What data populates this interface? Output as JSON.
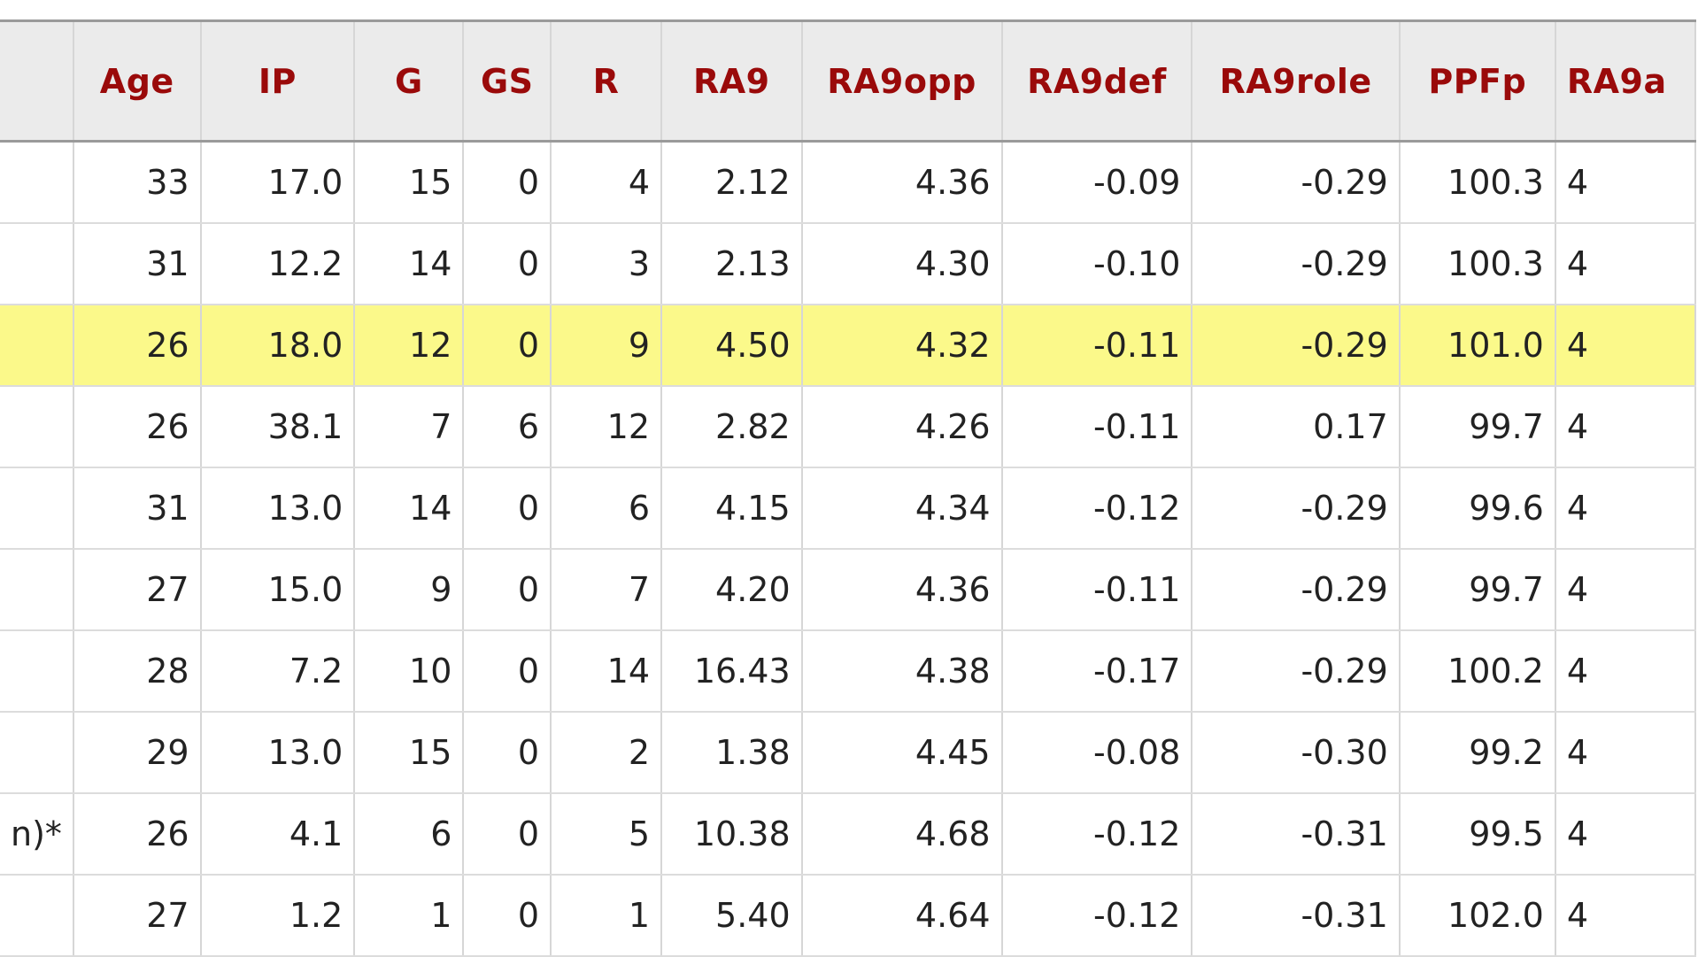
{
  "table": {
    "columns": [
      "",
      "Age",
      "IP",
      "G",
      "GS",
      "R",
      "RA9",
      "RA9opp",
      "RA9def",
      "RA9role",
      "PPFp",
      "RA9a"
    ],
    "highlight_row": 2,
    "highlight_color": "#fbf98a",
    "header_color": "#9a0a0a",
    "rows": [
      [
        "",
        "33",
        "17.0",
        "15",
        "0",
        "4",
        "2.12",
        "4.36",
        "-0.09",
        "-0.29",
        "100.3",
        "4"
      ],
      [
        "",
        "31",
        "12.2",
        "14",
        "0",
        "3",
        "2.13",
        "4.30",
        "-0.10",
        "-0.29",
        "100.3",
        "4"
      ],
      [
        "",
        "26",
        "18.0",
        "12",
        "0",
        "9",
        "4.50",
        "4.32",
        "-0.11",
        "-0.29",
        "101.0",
        "4"
      ],
      [
        "",
        "26",
        "38.1",
        "7",
        "6",
        "12",
        "2.82",
        "4.26",
        "-0.11",
        "0.17",
        "99.7",
        "4"
      ],
      [
        "",
        "31",
        "13.0",
        "14",
        "0",
        "6",
        "4.15",
        "4.34",
        "-0.12",
        "-0.29",
        "99.6",
        "4"
      ],
      [
        "",
        "27",
        "15.0",
        "9",
        "0",
        "7",
        "4.20",
        "4.36",
        "-0.11",
        "-0.29",
        "99.7",
        "4"
      ],
      [
        "",
        "28",
        "7.2",
        "10",
        "0",
        "14",
        "16.43",
        "4.38",
        "-0.17",
        "-0.29",
        "100.2",
        "4"
      ],
      [
        "",
        "29",
        "13.0",
        "15",
        "0",
        "2",
        "1.38",
        "4.45",
        "-0.08",
        "-0.30",
        "99.2",
        "4"
      ],
      [
        "n)*",
        "26",
        "4.1",
        "6",
        "0",
        "5",
        "10.38",
        "4.68",
        "-0.12",
        "-0.31",
        "99.5",
        "4"
      ],
      [
        "",
        "27",
        "1.2",
        "1",
        "0",
        "1",
        "5.40",
        "4.64",
        "-0.12",
        "-0.31",
        "102.0",
        "4"
      ]
    ]
  }
}
